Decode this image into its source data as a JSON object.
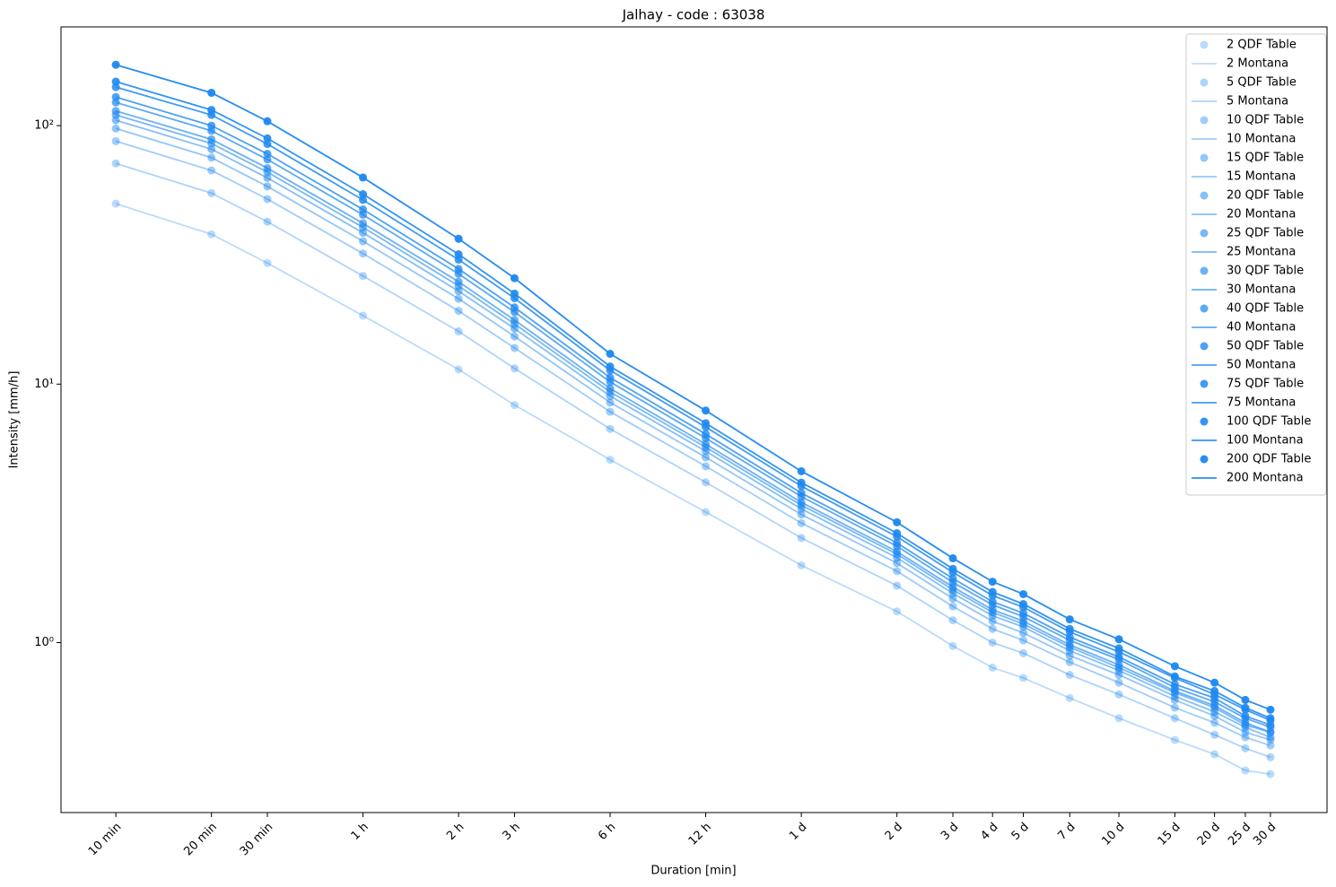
{
  "chart_data": {
    "type": "line",
    "title": "Jalhay - code : 63038",
    "x_label": "Duration [min]",
    "y_label": "Intensity [mm/h]",
    "x_log": true,
    "y_log": true,
    "legend": "upper right",
    "x": [
      10,
      20,
      30,
      60,
      120,
      180,
      360,
      720,
      1440,
      2880,
      4320,
      5760,
      7200,
      10080,
      14400,
      21600,
      28800,
      36000,
      43200
    ],
    "xlim": [
      6.72,
      65100
    ],
    "ylim": [
      0.22,
      241
    ],
    "xticks": [
      {
        "value": 10,
        "label": "10 min"
      },
      {
        "value": 20,
        "label": "20 min"
      },
      {
        "value": 30,
        "label": "30 min"
      },
      {
        "value": 60,
        "label": "1 h"
      },
      {
        "value": 120,
        "label": "2 h"
      },
      {
        "value": 180,
        "label": "3 h"
      },
      {
        "value": 360,
        "label": "6 h"
      },
      {
        "value": 720,
        "label": "12 h"
      },
      {
        "value": 1440,
        "label": "1 d"
      },
      {
        "value": 2880,
        "label": "2 d"
      },
      {
        "value": 4320,
        "label": "3 d"
      },
      {
        "value": 5760,
        "label": "4 d"
      },
      {
        "value": 7200,
        "label": "5 d"
      },
      {
        "value": 10080,
        "label": "7 d"
      },
      {
        "value": 14400,
        "label": "10 d"
      },
      {
        "value": 21600,
        "label": "15 d"
      },
      {
        "value": 28800,
        "label": "20 d"
      },
      {
        "value": 36000,
        "label": "25 d"
      },
      {
        "value": 43200,
        "label": "30 d"
      }
    ],
    "yticks": [
      {
        "value": 1,
        "label": "10⁰"
      },
      {
        "value": 10,
        "label": "10¹"
      },
      {
        "value": 100,
        "label": "10²"
      }
    ],
    "series": [
      {
        "name": "2 QDF Table",
        "kind": "points",
        "color": "#1e88f0",
        "alpha": 0.3,
        "values": [
          49.9,
          38.0,
          29.4,
          18.4,
          11.4,
          8.3,
          5.1,
          3.2,
          1.99,
          1.32,
          0.97,
          0.8,
          0.73,
          0.61,
          0.51,
          0.42,
          0.37,
          0.32,
          0.31
        ]
      },
      {
        "name": "2 Montana",
        "kind": "line",
        "color": "#1e88f0",
        "alpha": 0.3,
        "values": [
          49.9,
          38.0,
          29.4,
          18.4,
          11.4,
          8.3,
          5.1,
          3.2,
          1.99,
          1.32,
          0.97,
          0.8,
          0.73,
          0.61,
          0.51,
          0.42,
          0.37,
          0.32,
          0.31
        ]
      },
      {
        "name": "5 QDF Table",
        "kind": "points",
        "color": "#1e88f0",
        "alpha": 0.36,
        "values": [
          71.4,
          54.8,
          42.5,
          26.2,
          16.0,
          11.5,
          6.71,
          4.17,
          2.54,
          1.66,
          1.22,
          1.0,
          0.91,
          0.75,
          0.63,
          0.51,
          0.44,
          0.39,
          0.36
        ]
      },
      {
        "name": "5 Montana",
        "kind": "line",
        "color": "#1e88f0",
        "alpha": 0.36,
        "values": [
          71.4,
          54.8,
          42.5,
          26.2,
          16.0,
          11.5,
          6.71,
          4.17,
          2.54,
          1.66,
          1.22,
          1.0,
          0.91,
          0.75,
          0.63,
          0.51,
          0.44,
          0.39,
          0.36
        ]
      },
      {
        "name": "10 QDF Table",
        "kind": "points",
        "color": "#1e88f0",
        "alpha": 0.42,
        "values": [
          87.1,
          67.1,
          52.0,
          32.0,
          19.2,
          13.8,
          7.82,
          4.81,
          2.9,
          1.89,
          1.38,
          1.13,
          1.02,
          0.84,
          0.7,
          0.56,
          0.49,
          0.43,
          0.4
        ]
      },
      {
        "name": "10 Montana",
        "kind": "line",
        "color": "#1e88f0",
        "alpha": 0.42,
        "values": [
          87.1,
          67.1,
          52.0,
          32.0,
          19.2,
          13.8,
          7.82,
          4.81,
          2.9,
          1.89,
          1.38,
          1.13,
          1.02,
          0.84,
          0.7,
          0.56,
          0.49,
          0.43,
          0.4
        ]
      },
      {
        "name": "15 QDF Table",
        "kind": "points",
        "color": "#1e88f0",
        "alpha": 0.48,
        "values": [
          97.5,
          75.2,
          58.2,
          35.7,
          21.4,
          15.3,
          8.49,
          5.21,
          3.13,
          2.03,
          1.48,
          1.21,
          1.09,
          0.89,
          0.75,
          0.6,
          0.52,
          0.45,
          0.42
        ]
      },
      {
        "name": "15 Montana",
        "kind": "line",
        "color": "#1e88f0",
        "alpha": 0.48,
        "values": [
          97.5,
          75.2,
          58.2,
          35.7,
          21.4,
          15.3,
          8.49,
          5.21,
          3.13,
          2.03,
          1.48,
          1.21,
          1.09,
          0.89,
          0.75,
          0.6,
          0.52,
          0.45,
          0.42
        ]
      },
      {
        "name": "20 QDF Table",
        "kind": "points",
        "color": "#1e88f0",
        "alpha": 0.54,
        "values": [
          105,
          81.1,
          62.8,
          38.5,
          22.9,
          16.4,
          8.99,
          5.5,
          3.29,
          2.13,
          1.55,
          1.27,
          1.15,
          0.93,
          0.78,
          0.62,
          0.54,
          0.47,
          0.43
        ]
      },
      {
        "name": "20 Montana",
        "kind": "line",
        "color": "#1e88f0",
        "alpha": 0.54,
        "values": [
          105,
          81.1,
          62.8,
          38.5,
          22.9,
          16.4,
          8.99,
          5.5,
          3.29,
          2.13,
          1.55,
          1.27,
          1.15,
          0.93,
          0.78,
          0.62,
          0.54,
          0.47,
          0.43
        ]
      },
      {
        "name": "25 QDF Table",
        "kind": "points",
        "color": "#1e88f0",
        "alpha": 0.6,
        "values": [
          110,
          85.3,
          66.1,
          40.4,
          24.0,
          17.1,
          9.33,
          5.7,
          3.4,
          2.2,
          1.6,
          1.31,
          1.18,
          0.96,
          0.8,
          0.64,
          0.56,
          0.48,
          0.45
        ]
      },
      {
        "name": "25 Montana",
        "kind": "line",
        "color": "#1e88f0",
        "alpha": 0.6,
        "values": [
          110,
          85.3,
          66.1,
          40.4,
          24.0,
          17.1,
          9.33,
          5.7,
          3.4,
          2.2,
          1.6,
          1.31,
          1.18,
          0.96,
          0.8,
          0.64,
          0.56,
          0.48,
          0.45
        ]
      },
      {
        "name": "30 QDF Table",
        "kind": "points",
        "color": "#1e88f0",
        "alpha": 0.66,
        "values": [
          114,
          88.5,
          68.5,
          41.9,
          24.9,
          17.7,
          9.62,
          5.86,
          3.49,
          2.25,
          1.64,
          1.34,
          1.21,
          0.98,
          0.82,
          0.65,
          0.57,
          0.49,
          0.45
        ]
      },
      {
        "name": "30 Montana",
        "kind": "line",
        "color": "#1e88f0",
        "alpha": 0.66,
        "values": [
          114,
          88.5,
          68.5,
          41.9,
          24.9,
          17.7,
          9.62,
          5.86,
          3.49,
          2.25,
          1.64,
          1.34,
          1.21,
          0.98,
          0.82,
          0.65,
          0.57,
          0.49,
          0.45
        ]
      },
      {
        "name": "40 QDF Table",
        "kind": "points",
        "color": "#1e88f0",
        "alpha": 0.72,
        "values": [
          123,
          95.5,
          74.0,
          45.2,
          26.7,
          19.0,
          10.2,
          6.18,
          3.67,
          2.36,
          1.71,
          1.4,
          1.26,
          1.02,
          0.86,
          0.67,
          0.59,
          0.51,
          0.47
        ]
      },
      {
        "name": "40 Montana",
        "kind": "line",
        "color": "#1e88f0",
        "alpha": 0.72,
        "values": [
          123,
          95.5,
          74.0,
          45.2,
          26.7,
          19.0,
          10.2,
          6.18,
          3.67,
          2.36,
          1.71,
          1.4,
          1.26,
          1.02,
          0.86,
          0.67,
          0.59,
          0.51,
          0.47
        ]
      },
      {
        "name": "50 QDF Table",
        "kind": "points",
        "color": "#1e88f0",
        "alpha": 0.78,
        "values": [
          129,
          100,
          77.8,
          47.4,
          27.9,
          19.8,
          10.6,
          6.41,
          3.79,
          2.43,
          1.77,
          1.44,
          1.3,
          1.05,
          0.88,
          0.69,
          0.61,
          0.52,
          0.48
        ]
      },
      {
        "name": "50 Montana",
        "kind": "line",
        "color": "#1e88f0",
        "alpha": 0.78,
        "values": [
          129,
          100,
          77.8,
          47.4,
          27.9,
          19.8,
          10.6,
          6.41,
          3.79,
          2.43,
          1.77,
          1.44,
          1.3,
          1.05,
          0.88,
          0.69,
          0.61,
          0.52,
          0.48
        ]
      },
      {
        "name": "75 QDF Table",
        "kind": "points",
        "color": "#1e88f0",
        "alpha": 0.84,
        "values": [
          141,
          110,
          84.9,
          51.6,
          30.3,
          21.5,
          11.3,
          6.82,
          4.03,
          2.57,
          1.87,
          1.52,
          1.37,
          1.1,
          0.92,
          0.73,
          0.63,
          0.55,
          0.5
        ]
      },
      {
        "name": "75 Montana",
        "kind": "line",
        "color": "#1e88f0",
        "alpha": 0.84,
        "values": [
          141,
          110,
          84.9,
          51.6,
          30.3,
          21.5,
          11.3,
          6.82,
          4.03,
          2.57,
          1.87,
          1.52,
          1.37,
          1.1,
          0.92,
          0.73,
          0.63,
          0.55,
          0.5
        ]
      },
      {
        "name": "100 QDF Table",
        "kind": "points",
        "color": "#1e88f0",
        "alpha": 0.9,
        "values": [
          148,
          115,
          89.3,
          54.3,
          31.8,
          22.4,
          11.7,
          7.06,
          4.16,
          2.65,
          1.93,
          1.57,
          1.41,
          1.13,
          0.95,
          0.74,
          0.65,
          0.56,
          0.51
        ]
      },
      {
        "name": "100 Montana",
        "kind": "line",
        "color": "#1e88f0",
        "alpha": 0.9,
        "values": [
          148,
          115,
          89.3,
          54.3,
          31.8,
          22.4,
          11.7,
          7.06,
          4.16,
          2.65,
          1.93,
          1.57,
          1.41,
          1.13,
          0.95,
          0.74,
          0.65,
          0.56,
          0.51
        ]
      },
      {
        "name": "200 QDF Table",
        "kind": "points",
        "color": "#1e88f0",
        "alpha": 0.96,
        "values": [
          172,
          134,
          104,
          63,
          36.5,
          25.7,
          13.1,
          7.9,
          4.6,
          2.92,
          2.12,
          1.72,
          1.54,
          1.23,
          1.03,
          0.81,
          0.7,
          0.6,
          0.55
        ]
      },
      {
        "name": "200 Montana",
        "kind": "line",
        "color": "#1e88f0",
        "alpha": 0.96,
        "values": [
          172,
          134,
          104,
          63,
          36.5,
          25.7,
          13.1,
          7.9,
          4.6,
          2.92,
          2.12,
          1.72,
          1.54,
          1.23,
          1.03,
          0.81,
          0.7,
          0.6,
          0.55
        ]
      }
    ]
  }
}
